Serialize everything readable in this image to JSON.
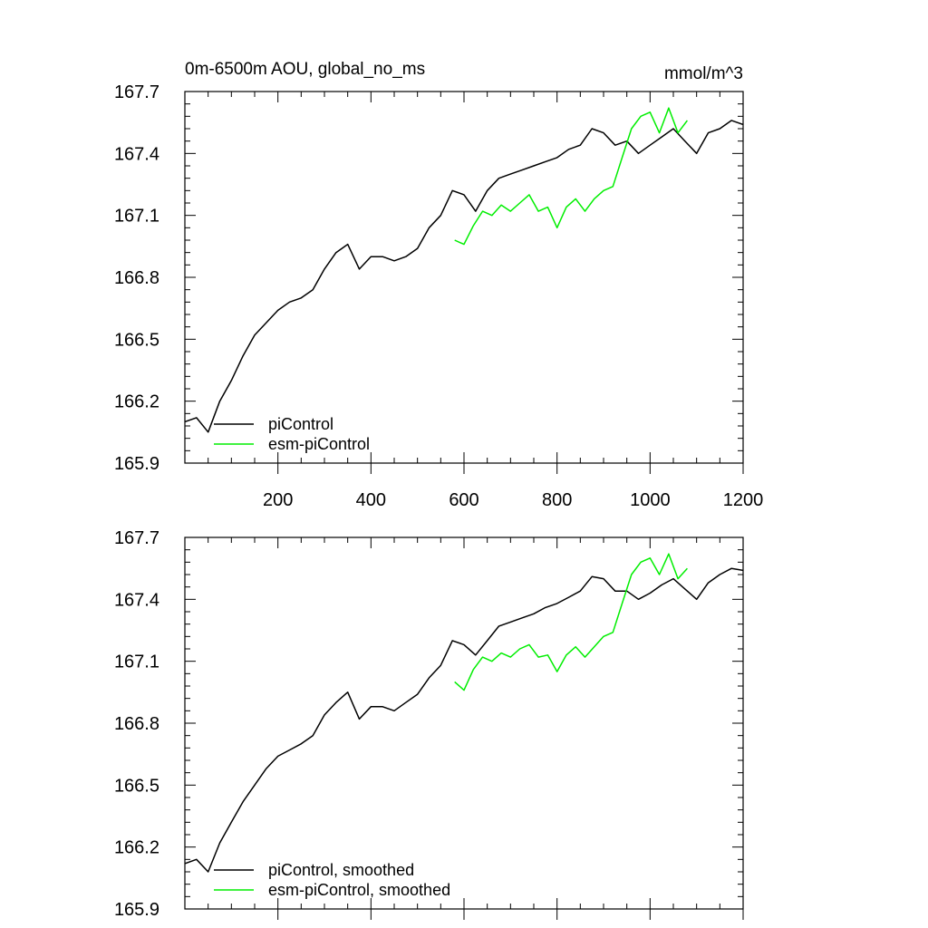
{
  "figure": {
    "title_left": "0m-6500m AOU, global_no_ms",
    "title_right": "mmol/m^3"
  },
  "colors": {
    "piControl": "#000000",
    "esm_piControl": "#00ee00",
    "axis": "#000000"
  },
  "chart_data": [
    {
      "type": "line",
      "panel": "top",
      "title": "0m-6500m AOU, global_no_ms",
      "units": "mmol/m^3",
      "xlabel": "",
      "ylabel": "",
      "xlim": [
        0,
        1200
      ],
      "ylim": [
        165.9,
        167.7
      ],
      "xticks": [
        200,
        400,
        600,
        800,
        1000,
        1200
      ],
      "xtick_labels": [
        "200",
        "400",
        "600",
        "800",
        "1000",
        "1200"
      ],
      "yticks": [
        165.9,
        166.2,
        166.5,
        166.8,
        167.1,
        167.4,
        167.7
      ],
      "ytick_labels": [
        "165.9",
        "166.2",
        "166.5",
        "166.8",
        "167.1",
        "167.4",
        "167.7"
      ],
      "legend_position": "bottom-left",
      "series": [
        {
          "name": "piControl",
          "legend": "piControl",
          "color": "#000000",
          "x": [
            0,
            25,
            50,
            75,
            100,
            125,
            150,
            175,
            200,
            225,
            250,
            275,
            300,
            325,
            350,
            375,
            400,
            425,
            450,
            475,
            500,
            525,
            550,
            575,
            600,
            625,
            650,
            675,
            700,
            725,
            750,
            775,
            800,
            825,
            850,
            875,
            900,
            925,
            950,
            975,
            1000,
            1025,
            1050,
            1075,
            1100,
            1125,
            1150,
            1175,
            1200
          ],
          "y": [
            166.1,
            166.12,
            166.05,
            166.2,
            166.3,
            166.42,
            166.52,
            166.58,
            166.64,
            166.68,
            166.7,
            166.74,
            166.84,
            166.92,
            166.96,
            166.84,
            166.9,
            166.9,
            166.88,
            166.9,
            166.94,
            167.04,
            167.1,
            167.22,
            167.2,
            167.12,
            167.22,
            167.28,
            167.3,
            167.32,
            167.34,
            167.36,
            167.38,
            167.42,
            167.44,
            167.52,
            167.5,
            167.44,
            167.46,
            167.4,
            167.44,
            167.48,
            167.52,
            167.46,
            167.4,
            167.5,
            167.52,
            167.56,
            167.54
          ]
        },
        {
          "name": "esm-piControl",
          "legend": "esm-piControl",
          "color": "#00ee00",
          "x": [
            580,
            600,
            620,
            640,
            660,
            680,
            700,
            720,
            740,
            760,
            780,
            800,
            820,
            840,
            860,
            880,
            900,
            920,
            940,
            960,
            980,
            1000,
            1020,
            1040,
            1060,
            1080
          ],
          "y": [
            166.98,
            166.96,
            167.05,
            167.12,
            167.1,
            167.15,
            167.12,
            167.16,
            167.2,
            167.12,
            167.14,
            167.04,
            167.14,
            167.18,
            167.12,
            167.18,
            167.22,
            167.24,
            167.38,
            167.52,
            167.58,
            167.6,
            167.5,
            167.62,
            167.5,
            167.56
          ]
        }
      ]
    },
    {
      "type": "line",
      "panel": "bottom",
      "title": "",
      "xlabel": "",
      "ylabel": "",
      "xlim": [
        0,
        1200
      ],
      "ylim": [
        165.9,
        167.7
      ],
      "xticks": [
        200,
        400,
        600,
        800,
        1000,
        1200
      ],
      "xtick_labels": [],
      "yticks": [
        165.9,
        166.2,
        166.5,
        166.8,
        167.1,
        167.4,
        167.7
      ],
      "ytick_labels": [
        "165.9",
        "166.2",
        "166.5",
        "166.8",
        "167.1",
        "167.4",
        "167.7"
      ],
      "legend_position": "bottom-left",
      "series": [
        {
          "name": "piControl, smoothed",
          "legend": "piControl, smoothed",
          "color": "#000000",
          "x": [
            0,
            25,
            50,
            75,
            100,
            125,
            150,
            175,
            200,
            225,
            250,
            275,
            300,
            325,
            350,
            375,
            400,
            425,
            450,
            475,
            500,
            525,
            550,
            575,
            600,
            625,
            650,
            675,
            700,
            725,
            750,
            775,
            800,
            825,
            850,
            875,
            900,
            925,
            950,
            975,
            1000,
            1025,
            1050,
            1075,
            1100,
            1125,
            1150,
            1175,
            1200
          ],
          "y": [
            166.12,
            166.14,
            166.08,
            166.22,
            166.32,
            166.42,
            166.5,
            166.58,
            166.64,
            166.67,
            166.7,
            166.74,
            166.84,
            166.9,
            166.95,
            166.82,
            166.88,
            166.88,
            166.86,
            166.9,
            166.94,
            167.02,
            167.08,
            167.2,
            167.18,
            167.13,
            167.2,
            167.27,
            167.29,
            167.31,
            167.33,
            167.36,
            167.38,
            167.41,
            167.44,
            167.51,
            167.5,
            167.44,
            167.44,
            167.4,
            167.43,
            167.47,
            167.5,
            167.45,
            167.4,
            167.48,
            167.52,
            167.55,
            167.54
          ]
        },
        {
          "name": "esm-piControl, smoothed",
          "legend": "esm-piControl, smoothed",
          "color": "#00ee00",
          "x": [
            580,
            600,
            620,
            640,
            660,
            680,
            700,
            720,
            740,
            760,
            780,
            800,
            820,
            840,
            860,
            880,
            900,
            920,
            940,
            960,
            980,
            1000,
            1020,
            1040,
            1060,
            1080
          ],
          "y": [
            167.0,
            166.96,
            167.06,
            167.12,
            167.1,
            167.14,
            167.12,
            167.16,
            167.18,
            167.12,
            167.13,
            167.05,
            167.13,
            167.17,
            167.12,
            167.17,
            167.22,
            167.24,
            167.38,
            167.52,
            167.58,
            167.6,
            167.52,
            167.62,
            167.5,
            167.55
          ]
        }
      ]
    }
  ]
}
